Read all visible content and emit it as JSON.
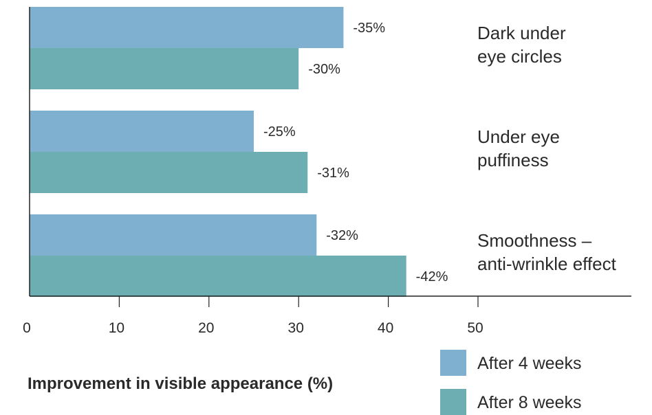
{
  "chart_data": {
    "type": "bar",
    "orientation": "horizontal",
    "categories": [
      [
        "Dark under",
        "eye circles"
      ],
      [
        "Under eye",
        "puffiness"
      ],
      [
        "Smoothness –",
        "anti-wrinkle effect"
      ]
    ],
    "series": [
      {
        "name": "After 4 weeks",
        "color": "#7fb0d0",
        "values": [
          35,
          25,
          32
        ],
        "labels": [
          "-35%",
          "-25%",
          "-32%"
        ]
      },
      {
        "name": "After 8 weeks",
        "color": "#6daeb3",
        "values": [
          30,
          31,
          42
        ],
        "labels": [
          "-30%",
          "-31%",
          "-42%"
        ]
      }
    ],
    "xlim": [
      0,
      50
    ],
    "xticks": [
      "0",
      "10",
      "20",
      "30",
      "40",
      "50"
    ],
    "xlabel": "Improvement in visible appearance (%)",
    "ylabel": "",
    "grid": false,
    "legend_position": "bottom-right"
  }
}
